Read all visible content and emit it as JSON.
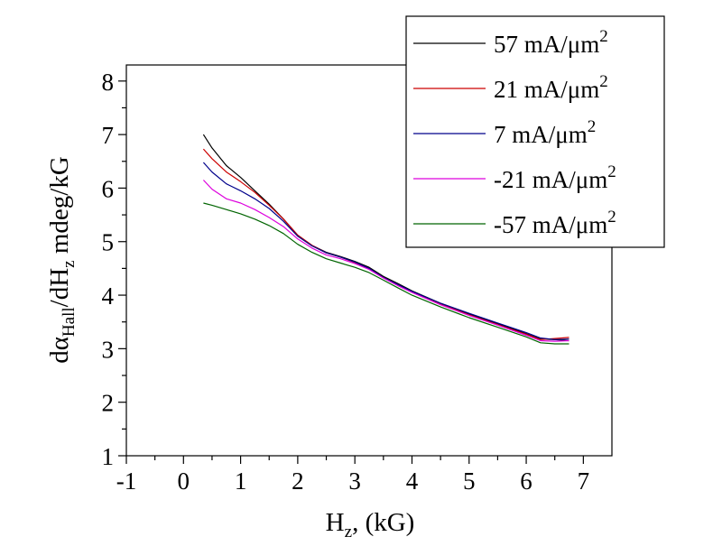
{
  "chart_data": {
    "type": "line",
    "title": "",
    "xlabel": {
      "main": "H",
      "sub": "z",
      "tail": ", (kG)"
    },
    "ylabel": {
      "p1": "dα",
      "sub1": "Hall",
      "p2": "/dH",
      "sub2": "z",
      "p3": " mdeg/kG"
    },
    "xlim": [
      -1,
      7.5
    ],
    "ylim": [
      1,
      8.3
    ],
    "x_ticks": [
      -1,
      0,
      1,
      2,
      3,
      4,
      5,
      6,
      7
    ],
    "y_ticks": [
      1,
      2,
      3,
      4,
      5,
      6,
      7,
      8
    ],
    "grid": false,
    "legend_position": "top-right",
    "series": [
      {
        "name": "57 mA/μm",
        "superscript": "2",
        "color": "#000000",
        "x": [
          0.35,
          0.5,
          0.75,
          1.0,
          1.25,
          1.5,
          1.75,
          2.0,
          2.25,
          2.5,
          2.75,
          3.0,
          3.25,
          3.5,
          3.75,
          4.0,
          4.5,
          5.0,
          5.5,
          6.0,
          6.25,
          6.5,
          6.75
        ],
        "y": [
          7.0,
          6.75,
          6.42,
          6.2,
          5.95,
          5.7,
          5.42,
          5.12,
          4.93,
          4.8,
          4.72,
          4.63,
          4.52,
          4.35,
          4.22,
          4.08,
          3.85,
          3.65,
          3.47,
          3.28,
          3.18,
          3.17,
          3.15
        ]
      },
      {
        "name": "21 mA/μm",
        "superscript": "2",
        "color": "#cc0000",
        "x": [
          0.35,
          0.5,
          0.75,
          1.0,
          1.25,
          1.5,
          1.75,
          2.0,
          2.25,
          2.5,
          2.75,
          3.0,
          3.25,
          3.5,
          3.75,
          4.0,
          4.5,
          5.0,
          5.5,
          6.0,
          6.25,
          6.5,
          6.75
        ],
        "y": [
          6.73,
          6.55,
          6.3,
          6.12,
          5.92,
          5.68,
          5.42,
          5.12,
          4.93,
          4.79,
          4.71,
          4.61,
          4.5,
          4.33,
          4.2,
          4.06,
          3.83,
          3.63,
          3.45,
          3.27,
          3.17,
          3.19,
          3.21
        ]
      },
      {
        "name": "7 mA/μm",
        "superscript": "2",
        "color": "#00008b",
        "x": [
          0.35,
          0.5,
          0.75,
          1.0,
          1.25,
          1.5,
          1.75,
          2.0,
          2.25,
          2.5,
          2.75,
          3.0,
          3.25,
          3.5,
          3.75,
          4.0,
          4.5,
          5.0,
          5.5,
          6.0,
          6.25,
          6.5,
          6.75
        ],
        "y": [
          6.48,
          6.3,
          6.08,
          5.95,
          5.8,
          5.62,
          5.38,
          5.1,
          4.92,
          4.79,
          4.71,
          4.62,
          4.5,
          4.33,
          4.2,
          4.07,
          3.85,
          3.66,
          3.48,
          3.3,
          3.2,
          3.17,
          3.18
        ]
      },
      {
        "name": "-21 mA/μm",
        "superscript": "2",
        "color": "#dd00dd",
        "x": [
          0.35,
          0.5,
          0.75,
          1.0,
          1.25,
          1.5,
          1.75,
          2.0,
          2.25,
          2.5,
          2.75,
          3.0,
          3.25,
          3.5,
          3.75,
          4.0,
          4.5,
          5.0,
          5.5,
          6.0,
          6.25,
          6.5,
          6.75
        ],
        "y": [
          6.15,
          5.98,
          5.8,
          5.72,
          5.6,
          5.45,
          5.28,
          5.05,
          4.88,
          4.75,
          4.68,
          4.59,
          4.48,
          4.32,
          4.18,
          4.05,
          3.82,
          3.62,
          3.44,
          3.25,
          3.15,
          3.14,
          3.15
        ]
      },
      {
        "name": "-57 mA/μm",
        "superscript": "2",
        "color": "#006400",
        "x": [
          0.35,
          0.5,
          0.75,
          1.0,
          1.25,
          1.5,
          1.75,
          2.0,
          2.25,
          2.5,
          2.75,
          3.0,
          3.25,
          3.5,
          3.75,
          4.0,
          4.5,
          5.0,
          5.5,
          6.0,
          6.25,
          6.5,
          6.75
        ],
        "y": [
          5.72,
          5.68,
          5.6,
          5.52,
          5.42,
          5.3,
          5.15,
          4.95,
          4.8,
          4.68,
          4.6,
          4.52,
          4.42,
          4.28,
          4.14,
          4.0,
          3.78,
          3.58,
          3.4,
          3.22,
          3.11,
          3.09,
          3.09
        ]
      }
    ]
  }
}
